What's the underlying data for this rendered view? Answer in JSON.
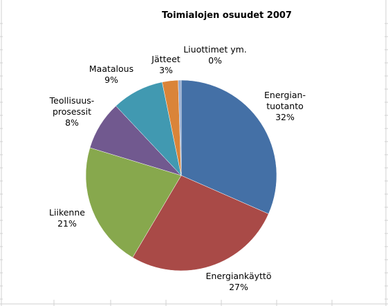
{
  "chart_data": {
    "type": "pie",
    "title": "Toimialojen osuudet 2007",
    "start_angle_deg": 0,
    "direction": "clockwise",
    "slices": [
      {
        "label": [
          "Energian-",
          "tuotanto"
        ],
        "pct_label": "32%",
        "value": 31.6,
        "color": "#4470A6"
      },
      {
        "label": [
          "Energiankäyttö"
        ],
        "pct_label": "27%",
        "value": 26.9,
        "color": "#A94A47"
      },
      {
        "label": [
          "Liikenne"
        ],
        "pct_label": "21%",
        "value": 21.2,
        "color": "#87A84D"
      },
      {
        "label": [
          "Teollisuus-",
          "prosessit"
        ],
        "pct_label": "8%",
        "value": 8.3,
        "color": "#71598F"
      },
      {
        "label": [
          "Maatalous"
        ],
        "pct_label": "9%",
        "value": 8.8,
        "color": "#4199B1"
      },
      {
        "label": [
          "Jätteet"
        ],
        "pct_label": "3%",
        "value": 2.7,
        "color": "#DA8439"
      },
      {
        "label": [
          "Liuottimet ym."
        ],
        "pct_label": "0%",
        "value": 0.5,
        "color": "#94ABD1"
      }
    ]
  }
}
